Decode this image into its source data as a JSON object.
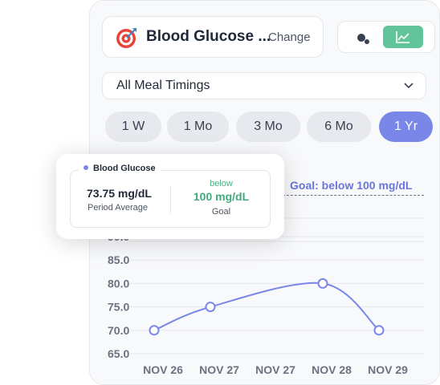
{
  "metric": {
    "name": "Blood Glucose ...",
    "change_label": "Change",
    "icon": "target-icon"
  },
  "view_toggle": {
    "options": [
      "scatter-icon",
      "line-chart-icon"
    ],
    "active": "line-chart-icon",
    "active_color": "#62c49a"
  },
  "meal_filter": {
    "selected": "All Meal Timings"
  },
  "ranges": [
    {
      "label": "1 W"
    },
    {
      "label": "1 Mo"
    },
    {
      "label": "3 Mo"
    },
    {
      "label": "6 Mo"
    },
    {
      "label": "1 Yr",
      "active": true
    }
  ],
  "colors": {
    "accent": "#7a87e8",
    "goal_green": "#43a87c",
    "goal_text": "#6876dc"
  },
  "popup": {
    "legend": "Blood Glucose",
    "average_value": "73.75 mg/dL",
    "average_label": "Period Average",
    "goal_prefix": "below",
    "goal_value": "100 mg/dL",
    "goal_label": "Goal"
  },
  "chart_data": {
    "type": "line",
    "goal_label": "Goal: below 100 mg/dL",
    "x": [
      "NOV 26",
      "NOV 27",
      "NOV 27",
      "NOV 28",
      "NOV 29"
    ],
    "series": [
      {
        "values": [
          70,
          75,
          75,
          80,
          70
        ]
      }
    ],
    "points_marked": [
      0,
      1,
      3,
      4
    ],
    "y_ticks": [
      "65.0",
      "70.0",
      "75.0",
      "80.0",
      "85.0",
      "90.0"
    ],
    "ylim": [
      65,
      90
    ],
    "grid": true,
    "smooth": true
  }
}
